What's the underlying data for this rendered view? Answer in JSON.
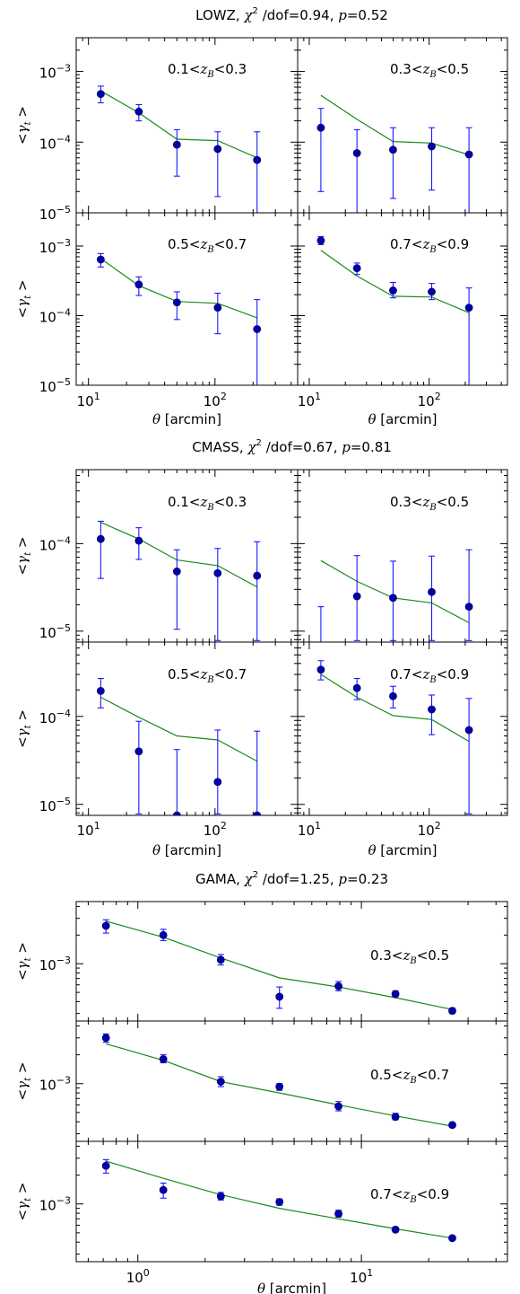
{
  "chart_data": [
    {
      "type": "scatter",
      "title": "LOWZ, χ² /dof=0.94, p=0.52",
      "title_parts": {
        "name": "LOWZ, ",
        "chi_symbol": "χ",
        "chi_exp": "2",
        "dof": " /dof=0.94, ",
        "p_symbol": "p",
        "p_value": "=0.52"
      },
      "xlabel": "θ [arcmin]",
      "ylabel": "<γ_t >",
      "xscale": "log",
      "yscale": "log",
      "xlim": [
        8,
        450
      ],
      "ylim": [
        1e-05,
        0.003
      ],
      "xticks": [
        "10^1",
        "10^2"
      ],
      "yticks": [
        "10^-5",
        "10^-4",
        "10^-3"
      ],
      "grid": "2x2",
      "panels": [
        {
          "label": "0.1<z_B<0.3",
          "x": [
            12.5,
            25,
            50,
            105,
            215
          ],
          "y": [
            0.00048,
            0.00027,
            9.2e-05,
            8e-05,
            5.6e-05
          ],
          "err_lo": [
            0.00036,
            0.0002,
            3.3e-05,
            1.7e-05,
            9.5e-06
          ],
          "err_hi": [
            0.00062,
            0.00034,
            0.00015,
            0.00014,
            0.00014
          ],
          "model": [
            0.00053,
            0.00026,
            0.00011,
            0.000105,
            6e-05
          ]
        },
        {
          "label": "0.3<z_B<0.5",
          "x": [
            12.5,
            25,
            50,
            105,
            215
          ],
          "y": [
            0.00016,
            7e-05,
            7.8e-05,
            8.7e-05,
            6.7e-05
          ],
          "err_lo": [
            2e-05,
            9.5e-06,
            1.6e-05,
            2.1e-05,
            9.5e-06
          ],
          "err_hi": [
            0.0003,
            0.00015,
            0.00016,
            0.00016,
            0.00016
          ],
          "model": [
            0.00046,
            0.00021,
            0.000102,
            9.7e-05,
            6.6e-05
          ]
        },
        {
          "label": "0.5<z_B<0.7",
          "x": [
            12.5,
            25,
            50,
            105,
            215
          ],
          "y": [
            0.00064,
            0.00028,
            0.000155,
            0.00013,
            6.4e-05
          ],
          "err_lo": [
            0.0005,
            0.000195,
            8.8e-05,
            5.5e-05,
            9.5e-06
          ],
          "err_hi": [
            0.00078,
            0.00036,
            0.00022,
            0.00021,
            0.00017
          ],
          "model": [
            0.00066,
            0.00027,
            0.00016,
            0.00015,
            9.3e-05
          ]
        },
        {
          "label": "0.7<z_B<0.9",
          "x": [
            12.5,
            25,
            50,
            105,
            215
          ],
          "y": [
            0.0012,
            0.00048,
            0.00023,
            0.00022,
            0.00013
          ],
          "err_lo": [
            0.00105,
            0.00039,
            0.00018,
            0.00017,
            9.5e-06
          ],
          "err_hi": [
            0.00137,
            0.00057,
            0.0003,
            0.00029,
            0.00025
          ],
          "model": [
            0.00087,
            0.00037,
            0.00019,
            0.000185,
            0.00011
          ]
        }
      ]
    },
    {
      "type": "scatter",
      "title": "CMASS, χ² /dof=0.67, p=0.81",
      "title_parts": {
        "name": "CMASS, ",
        "chi_symbol": "χ",
        "chi_exp": "2",
        "dof": " /dof=0.67, ",
        "p_symbol": "p",
        "p_value": "=0.81"
      },
      "xlabel": "θ [arcmin]",
      "ylabel": "<γ_t >",
      "xscale": "log",
      "yscale": "log",
      "xlim": [
        8,
        450
      ],
      "ylim": [
        7.5e-06,
        0.0007
      ],
      "xticks": [
        "10^1",
        "10^2"
      ],
      "yticks": [
        "10^-5",
        "10^-4"
      ],
      "grid": "2x2",
      "panels": [
        {
          "label": "0.1<z_B<0.3",
          "x": [
            12.5,
            25,
            50,
            105,
            215
          ],
          "y": [
            0.000113,
            0.000108,
            4.8e-05,
            4.6e-05,
            4.3e-05
          ],
          "err_lo": [
            4e-05,
            6.6e-05,
            1.05e-05,
            7.8e-06,
            7.8e-06
          ],
          "err_hi": [
            0.00018,
            0.000152,
            8.5e-05,
            8.8e-05,
            0.000105
          ],
          "model": [
            0.000175,
            0.000113,
            6.5e-05,
            5.6e-05,
            3.2e-05
          ]
        },
        {
          "label": "0.3<z_B<0.5",
          "x": [
            12.5,
            25,
            50,
            105,
            215
          ],
          "y": [
            6.2e-06,
            2.5e-05,
            2.4e-05,
            2.8e-05,
            1.9e-05
          ],
          "err_lo": [
            6.2e-06,
            7.8e-06,
            7.8e-06,
            7.8e-06,
            7.8e-06
          ],
          "err_hi": [
            1.9e-05,
            7.3e-05,
            6.3e-05,
            7.2e-05,
            8.5e-05
          ],
          "model": [
            6.4e-05,
            3.7e-05,
            2.4e-05,
            2.1e-05,
            1.25e-05
          ]
        },
        {
          "label": "0.5<z_B<0.7",
          "x": [
            12.5,
            25,
            50,
            105,
            215
          ],
          "y": [
            0.000195,
            4e-05,
            7.5e-06,
            1.8e-05,
            7.5e-06
          ],
          "err_lo": [
            0.000125,
            7.8e-06,
            7.8e-06,
            7.8e-06,
            7.8e-06
          ],
          "err_hi": [
            0.00027,
            8.8e-05,
            4.2e-05,
            7e-05,
            6.8e-05
          ],
          "model": [
            0.000165,
            9.8e-05,
            6e-05,
            5.4e-05,
            3.1e-05
          ]
        },
        {
          "label": "0.7<z_B<0.9",
          "x": [
            12.5,
            25,
            50,
            105,
            215
          ],
          "y": [
            0.00034,
            0.00021,
            0.00017,
            0.00012,
            7e-05
          ],
          "err_lo": [
            0.00026,
            0.000155,
            0.000125,
            6.2e-05,
            7.8e-06
          ],
          "err_hi": [
            0.00043,
            0.00027,
            0.00022,
            0.000175,
            0.00016
          ],
          "model": [
            0.0003,
            0.000165,
            0.000102,
            9.2e-05,
            5.2e-05
          ]
        }
      ]
    },
    {
      "type": "scatter",
      "title": "GAMA, χ² /dof=1.25, p=0.23",
      "title_parts": {
        "name": "GAMA, ",
        "chi_symbol": "χ",
        "chi_exp": "2",
        "dof": " /dof=1.25, ",
        "p_symbol": "p",
        "p_value": "=0.23"
      },
      "xlabel": "θ [arcmin]",
      "ylabel": "<γ_t >",
      "xscale": "log",
      "yscale": "log",
      "xlim": [
        0.53,
        45
      ],
      "ylim": [
        0.00025,
        0.0045
      ],
      "xticks": [
        "10^0",
        "10^1"
      ],
      "yticks": [
        "10^-3"
      ],
      "grid": "3x1",
      "panels": [
        {
          "label": "0.3<z_B<0.5",
          "x": [
            0.72,
            1.3,
            2.35,
            4.3,
            7.9,
            14.2,
            25.5
          ],
          "y": [
            0.0025,
            0.002,
            0.0011,
            0.00045,
            0.00058,
            0.00048,
            0.00032
          ],
          "err_lo": [
            0.0021,
            0.00175,
            0.00097,
            0.00034,
            0.00052,
            0.00045,
            0.0003
          ],
          "err_hi": [
            0.0029,
            0.0023,
            0.00125,
            0.00057,
            0.00065,
            0.00052,
            0.00034
          ],
          "model": [
            0.0028,
            0.0019,
            0.00115,
            0.00071,
            0.00057,
            0.00044,
            0.00033
          ]
        },
        {
          "label": "0.5<z_B<0.7",
          "x": [
            0.72,
            1.3,
            2.35,
            4.3,
            7.9,
            14.2,
            25.5
          ],
          "y": [
            0.003,
            0.0018,
            0.00105,
            0.00093,
            0.00058,
            0.00045,
            0.00037
          ],
          "err_lo": [
            0.0027,
            0.00165,
            0.00093,
            0.00085,
            0.00052,
            0.00042,
            0.00035
          ],
          "err_hi": [
            0.0033,
            0.002,
            0.00118,
            0.001,
            0.00065,
            0.00049,
            0.00039
          ],
          "model": [
            0.0026,
            0.00175,
            0.00105,
            0.0008,
            0.0006,
            0.00046,
            0.00036
          ]
        },
        {
          "label": "0.7<z_B<0.9",
          "x": [
            0.72,
            1.3,
            2.35,
            4.3,
            7.9,
            14.2,
            25.5
          ],
          "y": [
            0.0025,
            0.0014,
            0.0012,
            0.00105,
            0.00079,
            0.00054,
            0.00044
          ],
          "err_lo": [
            0.0021,
            0.00115,
            0.0011,
            0.00097,
            0.00073,
            0.00051,
            0.00042
          ],
          "err_hi": [
            0.0029,
            0.00165,
            0.00132,
            0.00113,
            0.00086,
            0.00057,
            0.00046
          ],
          "model": [
            0.0028,
            0.00185,
            0.00125,
            0.0009,
            0.0007,
            0.00055,
            0.00044
          ]
        }
      ]
    }
  ]
}
